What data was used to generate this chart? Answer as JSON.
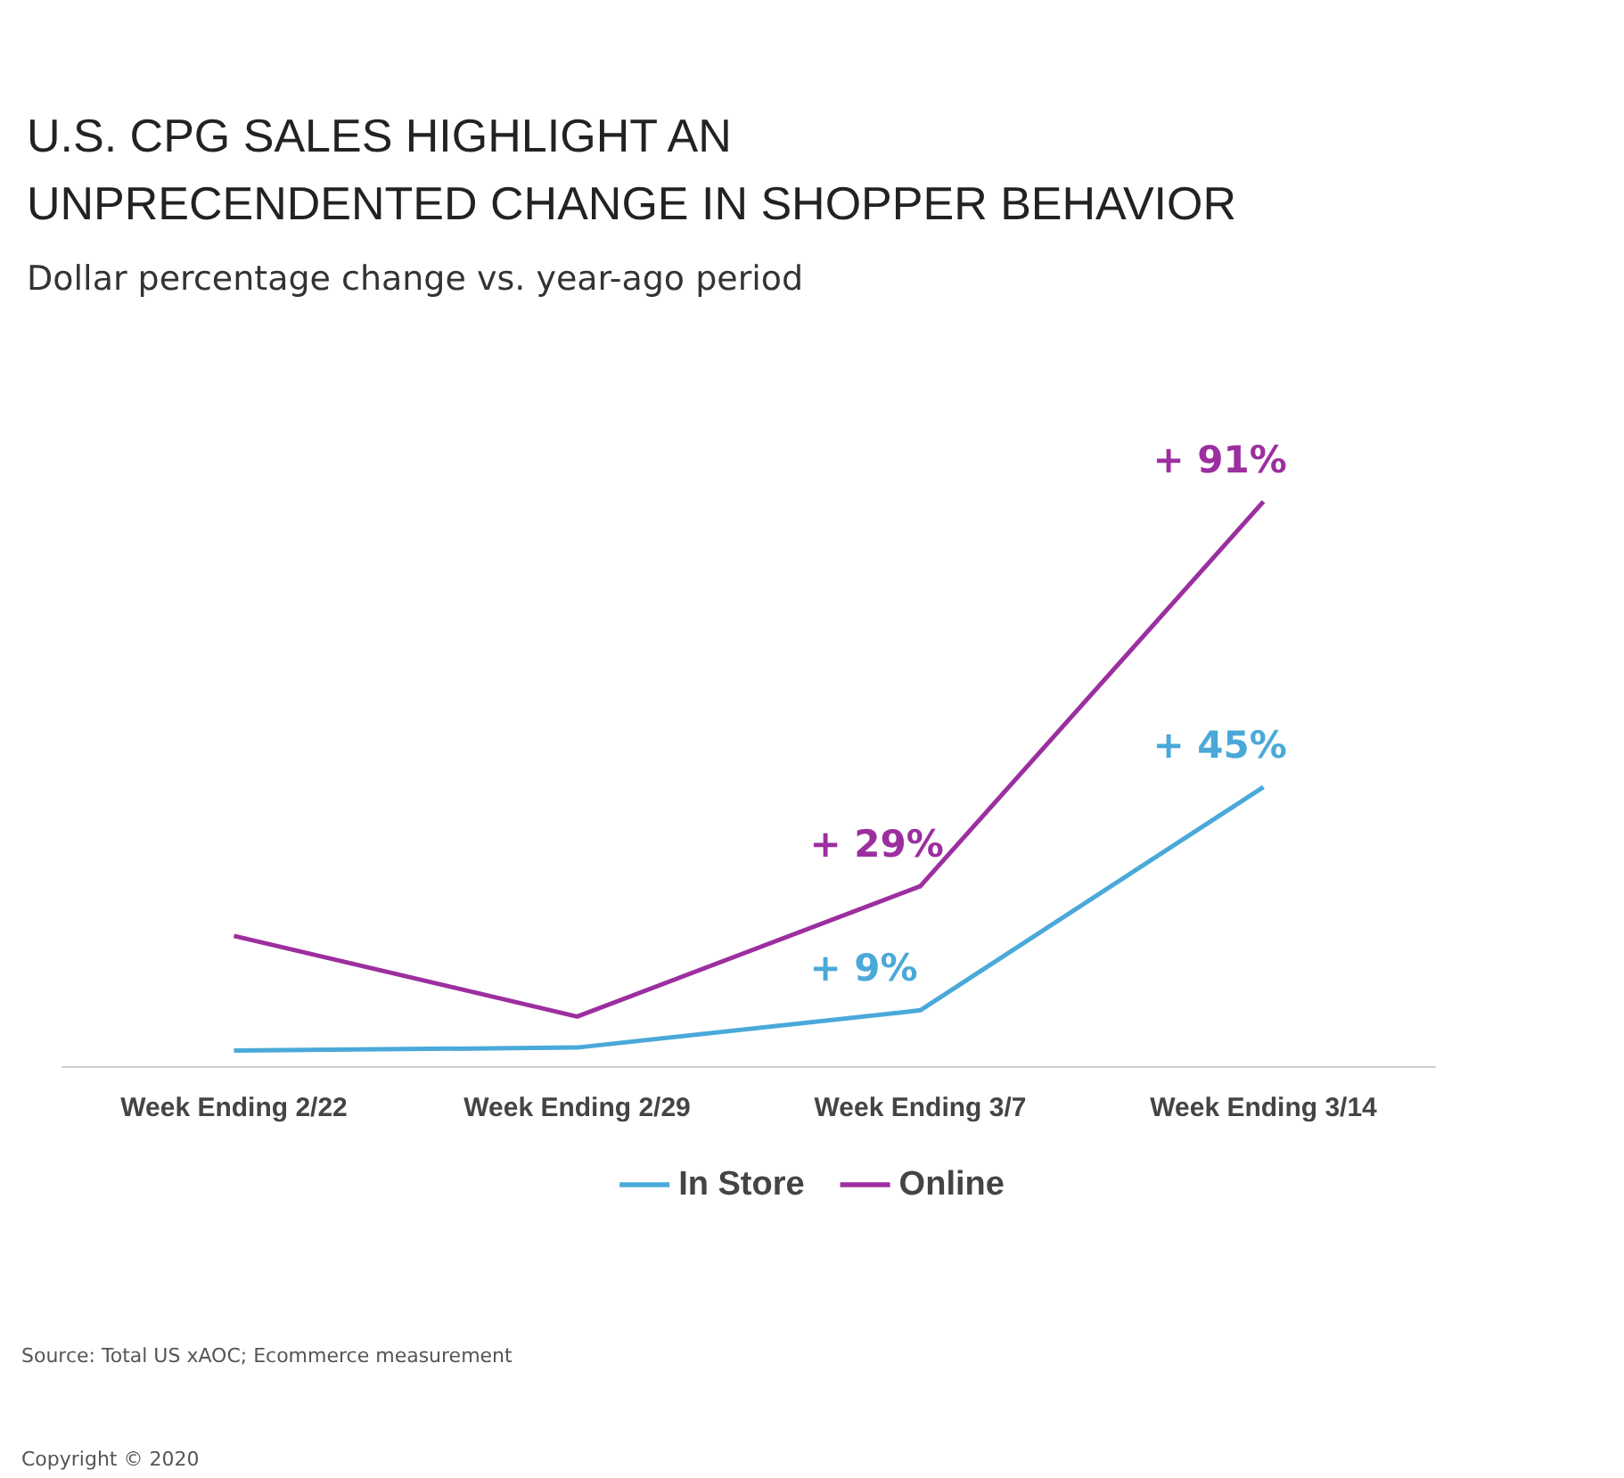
{
  "chart_data": {
    "type": "line",
    "title": "U.S. CPG SALES HIGHLIGHT AN\nUNPRECENDENTED CHANGE IN SHOPPER BEHAVIOR",
    "subtitle": "Dollar percentage change vs. year-ago period",
    "categories": [
      "Week Ending 2/22",
      "Week Ending 2/29",
      "Week Ending 3/7",
      "Week Ending 3/14"
    ],
    "series": [
      {
        "name": "In Store",
        "color": "#4aa9d9",
        "values": [
          2.5,
          3,
          9,
          45
        ],
        "value_labels": [
          null,
          null,
          "+ 9%",
          "+ 45%"
        ]
      },
      {
        "name": "Online",
        "color": "#9c2f9f",
        "values": [
          21,
          8,
          29,
          91
        ],
        "value_labels": [
          null,
          null,
          "+ 29%",
          "+ 91%"
        ]
      }
    ],
    "tick_labels": "x",
    "legend": "bottom",
    "marker": "none",
    "annotations": [
      "Source: Total US xAOC; Ecommerce measurement",
      "Copyright © 2020"
    ]
  }
}
